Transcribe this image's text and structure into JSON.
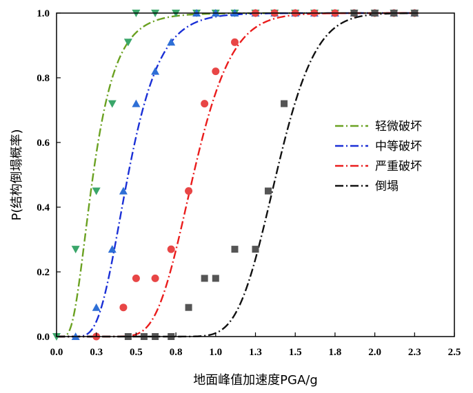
{
  "chart_data": {
    "type": "scatter",
    "xlabel": "地面峰值加速度PGA/g",
    "ylabel": "P(结构倒塌概率)",
    "xlim": [
      0.0,
      2.5
    ],
    "ylim": [
      0.0,
      1.0
    ],
    "x_ticks": [
      "0.0",
      "0.3",
      "0.5",
      "0.8",
      "1.0",
      "1.3",
      "1.5",
      "1.8",
      "2.0",
      "2.3",
      "2.5"
    ],
    "x_tick_values": [
      0.0,
      0.25,
      0.5,
      0.75,
      1.0,
      1.25,
      1.5,
      1.75,
      2.0,
      2.25,
      2.5
    ],
    "y_ticks": [
      "0.0",
      "0.2",
      "0.4",
      "0.6",
      "0.8",
      "1.0"
    ],
    "y_tick_values": [
      0.0,
      0.2,
      0.4,
      0.6,
      0.8,
      1.0
    ],
    "legend_position": "right",
    "series": [
      {
        "name": "轻微破坏",
        "color": "#6aa121",
        "marker": "triangle-down",
        "marker_color": "#3aa66a",
        "line_style": "dash-dot",
        "curve": {
          "median": 0.23,
          "beta": 0.5
        },
        "points": [
          [
            0.0,
            0.0
          ],
          [
            0.12,
            0.27
          ],
          [
            0.25,
            0.45
          ],
          [
            0.35,
            0.72
          ],
          [
            0.45,
            0.91
          ],
          [
            0.5,
            1.0
          ],
          [
            0.62,
            1.0
          ],
          [
            0.75,
            1.0
          ],
          [
            0.88,
            1.0
          ],
          [
            1.0,
            1.0
          ],
          [
            1.12,
            1.0
          ],
          [
            1.25,
            1.0
          ],
          [
            1.37,
            1.0
          ],
          [
            1.5,
            1.0
          ],
          [
            1.62,
            1.0
          ],
          [
            1.75,
            1.0
          ],
          [
            1.87,
            1.0
          ],
          [
            2.0,
            1.0
          ],
          [
            2.12,
            1.0
          ],
          [
            2.25,
            1.0
          ]
        ]
      },
      {
        "name": "中等破坏",
        "color": "#1a2fd6",
        "marker": "triangle-up",
        "marker_color": "#2e6fd6",
        "line_style": "dash-dot",
        "curve": {
          "median": 0.45,
          "beta": 0.35
        },
        "points": [
          [
            0.12,
            0.0
          ],
          [
            0.25,
            0.09
          ],
          [
            0.35,
            0.27
          ],
          [
            0.42,
            0.45
          ],
          [
            0.5,
            0.72
          ],
          [
            0.62,
            0.82
          ],
          [
            0.72,
            0.91
          ],
          [
            0.88,
            1.0
          ],
          [
            1.0,
            1.0
          ],
          [
            1.12,
            1.0
          ],
          [
            1.25,
            1.0
          ],
          [
            1.37,
            1.0
          ],
          [
            1.5,
            1.0
          ],
          [
            1.62,
            1.0
          ],
          [
            1.75,
            1.0
          ],
          [
            1.87,
            1.0
          ],
          [
            2.0,
            1.0
          ],
          [
            2.12,
            1.0
          ],
          [
            2.25,
            1.0
          ]
        ]
      },
      {
        "name": "严重破坏",
        "color": "#ea1c1c",
        "marker": "circle",
        "marker_color": "#e84646",
        "line_style": "dash-dot",
        "curve": {
          "median": 0.86,
          "beta": 0.22
        },
        "points": [
          [
            0.25,
            0.0
          ],
          [
            0.42,
            0.09
          ],
          [
            0.5,
            0.18
          ],
          [
            0.62,
            0.18
          ],
          [
            0.72,
            0.27
          ],
          [
            0.83,
            0.45
          ],
          [
            0.93,
            0.72
          ],
          [
            1.0,
            0.82
          ],
          [
            1.12,
            0.91
          ],
          [
            1.25,
            1.0
          ],
          [
            1.37,
            1.0
          ],
          [
            1.5,
            1.0
          ],
          [
            1.62,
            1.0
          ],
          [
            1.75,
            1.0
          ],
          [
            1.87,
            1.0
          ],
          [
            2.0,
            1.0
          ],
          [
            2.12,
            1.0
          ],
          [
            2.25,
            1.0
          ]
        ]
      },
      {
        "name": "倒塌",
        "color": "#111111",
        "marker": "square",
        "marker_color": "#555555",
        "line_style": "dash-dot",
        "curve": {
          "median": 1.38,
          "beta": 0.14
        },
        "points": [
          [
            0.45,
            0.0
          ],
          [
            0.55,
            0.0
          ],
          [
            0.62,
            0.0
          ],
          [
            0.72,
            0.0
          ],
          [
            0.83,
            0.09
          ],
          [
            0.93,
            0.18
          ],
          [
            1.0,
            0.18
          ],
          [
            1.12,
            0.27
          ],
          [
            1.25,
            0.27
          ],
          [
            1.33,
            0.45
          ],
          [
            1.43,
            0.72
          ],
          [
            1.87,
            1.0
          ],
          [
            2.0,
            1.0
          ],
          [
            2.12,
            1.0
          ],
          [
            2.25,
            1.0
          ]
        ]
      }
    ]
  }
}
